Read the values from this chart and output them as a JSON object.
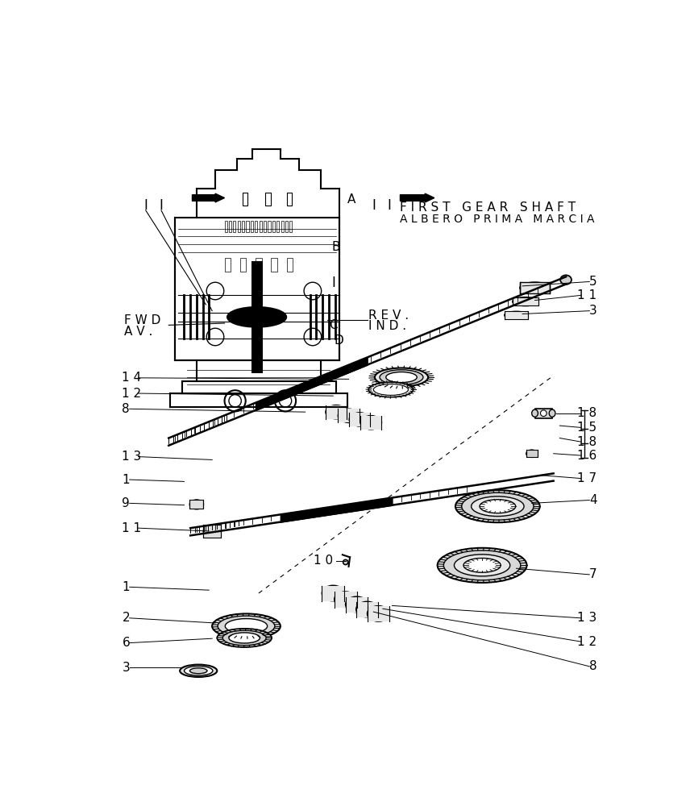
{
  "bg_color": "#ffffff",
  "header_text_line1": "F I R S T   G E A R   S H A F T",
  "header_text_line2": "A L B E R O   P R I M A   M A R C I A",
  "left_label_lines": [
    [
      55,
      453,
      "1 4",
      420,
      455
    ],
    [
      55,
      478,
      "1 2",
      395,
      482
    ],
    [
      55,
      503,
      "8",
      350,
      508
    ],
    [
      55,
      580,
      "1 3",
      200,
      585
    ],
    [
      55,
      617,
      "1",
      155,
      620
    ],
    [
      55,
      655,
      "9",
      155,
      658
    ],
    [
      55,
      695,
      "1 1",
      195,
      700
    ],
    [
      55,
      790,
      "1",
      195,
      795
    ],
    [
      55,
      840,
      "2",
      205,
      848
    ],
    [
      55,
      880,
      "6",
      200,
      873
    ],
    [
      55,
      920,
      "3",
      150,
      920
    ]
  ],
  "right_label_lines": [
    [
      820,
      298,
      "5",
      700,
      305
    ],
    [
      820,
      320,
      "1 1",
      720,
      328
    ],
    [
      820,
      345,
      "3",
      700,
      350
    ],
    [
      820,
      510,
      "1 8",
      755,
      510
    ],
    [
      820,
      533,
      "1 5",
      760,
      530
    ],
    [
      820,
      556,
      "1 8",
      760,
      550
    ],
    [
      820,
      578,
      "1 6",
      750,
      575
    ],
    [
      820,
      615,
      "1 7",
      730,
      610
    ],
    [
      820,
      650,
      "4",
      715,
      655
    ],
    [
      820,
      770,
      "7",
      690,
      760
    ],
    [
      820,
      840,
      "1 3",
      490,
      820
    ],
    [
      820,
      878,
      "1 2",
      475,
      825
    ],
    [
      820,
      918,
      "8",
      460,
      830
    ]
  ]
}
